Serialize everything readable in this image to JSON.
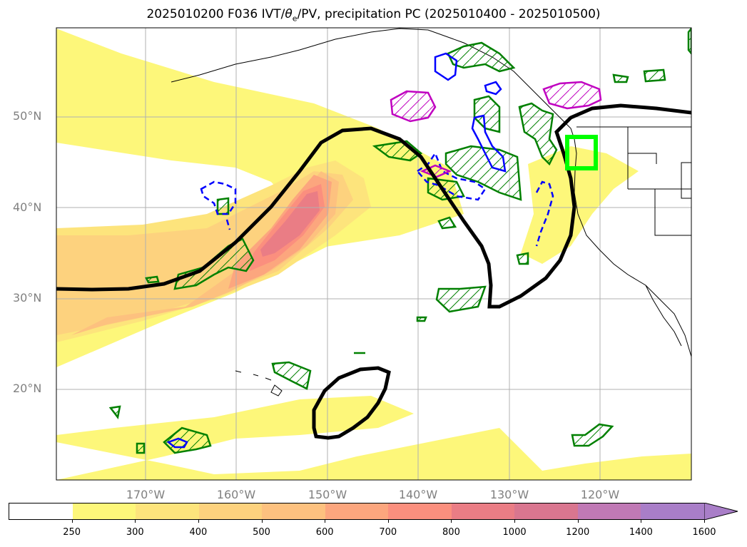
{
  "header": {
    "title_prefix": "2025010200 F036 IVT/",
    "theta": "θ",
    "theta_sub": "e",
    "title_suffix": "/PV, precipitation PC (2025010400 - 2025010500)"
  },
  "axes": {
    "lat_labels": [
      "50°N",
      "40°N",
      "30°N",
      "20°N"
    ],
    "lon_labels": [
      "170°W",
      "160°W",
      "150°W",
      "140°W",
      "130°W",
      "120°W"
    ]
  },
  "colorbar": {
    "ticks": [
      "250",
      "300",
      "400",
      "500",
      "600",
      "700",
      "800",
      "1000",
      "1200",
      "1400",
      "1600"
    ],
    "colors": [
      "#ffffff",
      "#fdf77a",
      "#fde47c",
      "#fdd27e",
      "#fdc17f",
      "#fca67e",
      "#fb8f7e",
      "#ea7d85",
      "#d9768f",
      "#c079b5",
      "#a97ec8"
    ]
  },
  "legend_colors": {
    "pv_contour": "#000000",
    "theta_contour": "#008000",
    "precip_positive": "#0000ff",
    "precip_magenta": "#c000c0",
    "target_box": "#00ff00"
  }
}
